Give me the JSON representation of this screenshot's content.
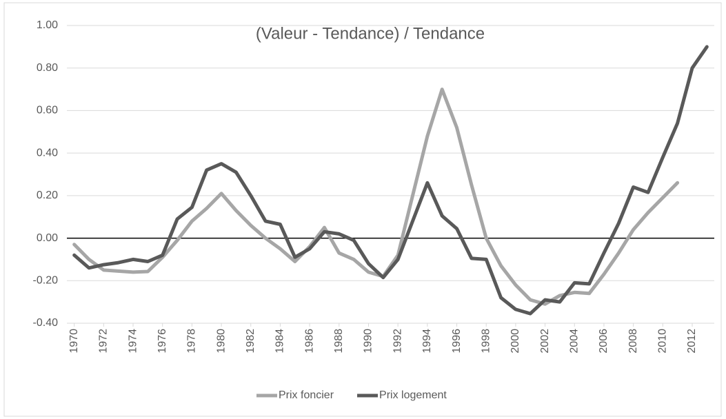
{
  "chart_data": {
    "type": "line",
    "title": "(Valeur - Tendance) / Tendance",
    "x": [
      1970,
      1971,
      1972,
      1973,
      1974,
      1975,
      1976,
      1977,
      1978,
      1979,
      1980,
      1981,
      1982,
      1983,
      1984,
      1985,
      1986,
      1987,
      1988,
      1989,
      1990,
      1991,
      1992,
      1993,
      1994,
      1995,
      1996,
      1997,
      1998,
      1999,
      2000,
      2001,
      2002,
      2003,
      2004,
      2005,
      2006,
      2007,
      2008,
      2009,
      2010,
      2011,
      2012,
      2013
    ],
    "series": [
      {
        "name": "Prix foncier",
        "color": "#a6a6a6",
        "values": [
          -0.03,
          -0.1,
          -0.15,
          -0.155,
          -0.16,
          -0.157,
          -0.09,
          -0.01,
          0.08,
          0.14,
          0.21,
          0.13,
          0.06,
          0.0,
          -0.05,
          -0.11,
          -0.04,
          0.05,
          -0.07,
          -0.1,
          -0.16,
          -0.18,
          -0.08,
          0.2,
          0.48,
          0.7,
          0.52,
          0.25,
          0.0,
          -0.13,
          -0.22,
          -0.29,
          -0.31,
          -0.27,
          -0.255,
          -0.26,
          -0.17,
          -0.07,
          0.04,
          0.12,
          0.19,
          0.26,
          null,
          null
        ]
      },
      {
        "name": "Prix logement",
        "color": "#595959",
        "values": [
          -0.08,
          -0.14,
          -0.125,
          -0.115,
          -0.1,
          -0.11,
          -0.08,
          0.09,
          0.145,
          0.32,
          0.35,
          0.31,
          0.2,
          0.08,
          0.065,
          -0.09,
          -0.05,
          0.03,
          0.02,
          -0.01,
          -0.12,
          -0.185,
          -0.1,
          0.08,
          0.26,
          0.105,
          0.045,
          -0.095,
          -0.1,
          -0.28,
          -0.335,
          -0.355,
          -0.29,
          -0.3,
          -0.21,
          -0.215,
          -0.07,
          0.07,
          0.24,
          0.215,
          0.38,
          0.54,
          0.8,
          0.9
        ]
      }
    ],
    "xlim": [
      1969.5,
      2013.5
    ],
    "xticks": [
      1970,
      1972,
      1974,
      1976,
      1978,
      1980,
      1982,
      1984,
      1986,
      1988,
      1990,
      1992,
      1994,
      1996,
      1998,
      2000,
      2002,
      2004,
      2006,
      2008,
      2010,
      2012
    ],
    "ylim": [
      -0.4,
      1.0
    ],
    "yticks": [
      {
        "value": 1.0,
        "label": "1.00"
      },
      {
        "value": 0.8,
        "label": "0.80"
      },
      {
        "value": 0.6,
        "label": "0.60"
      },
      {
        "value": 0.4,
        "label": "0.40"
      },
      {
        "value": 0.2,
        "label": "0.20"
      },
      {
        "value": 0,
        "label": "0.00"
      },
      {
        "value": -0.2,
        "label": "-0.20"
      },
      {
        "value": -0.4,
        "label": "-0.40"
      }
    ],
    "grid": true,
    "legend": "bottom"
  }
}
